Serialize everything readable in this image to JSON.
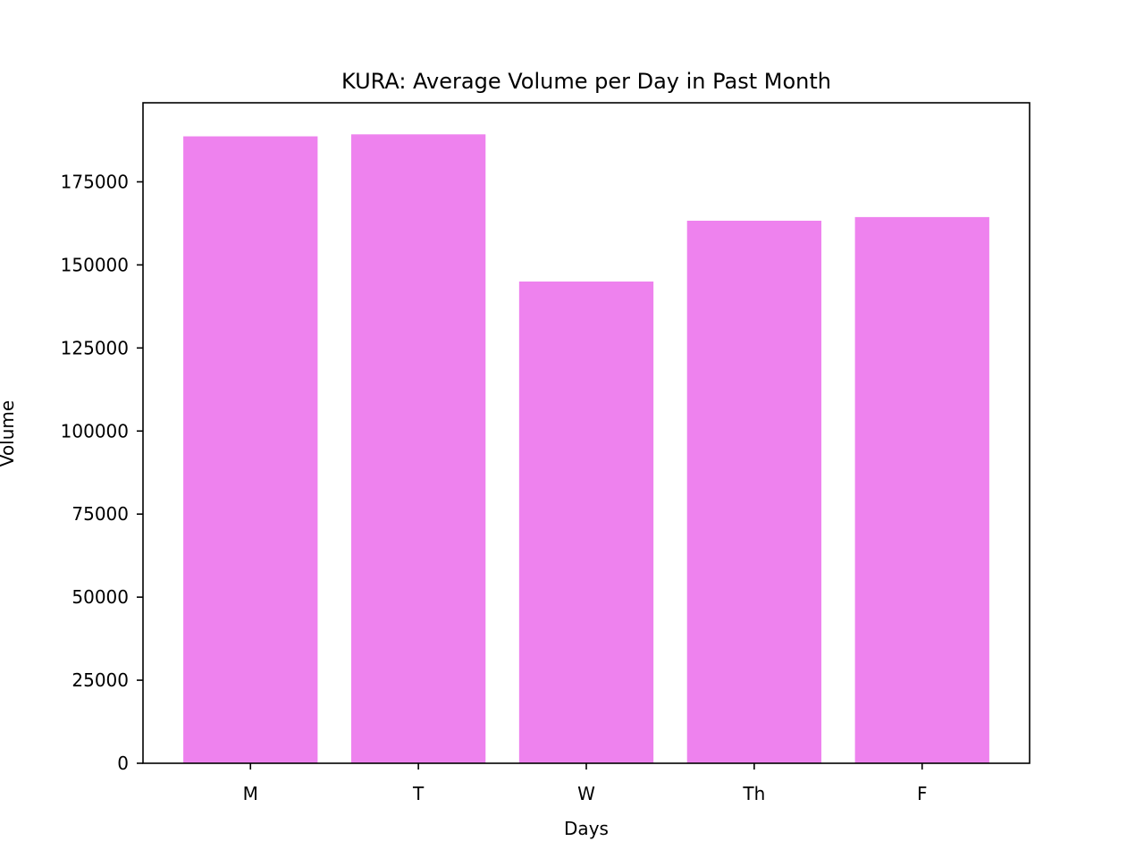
{
  "colors": {
    "bar": "#ee82ee",
    "axis": "#000000",
    "background": "#ffffff"
  },
  "chart_data": {
    "type": "bar",
    "title": "KURA: Average Volume per Day in Past Month",
    "xlabel": "Days",
    "ylabel": "Volume",
    "categories": [
      "M",
      "T",
      "W",
      "Th",
      "F"
    ],
    "values": [
      188700,
      189300,
      145000,
      163300,
      164400
    ],
    "ylim": [
      0,
      198800
    ],
    "yticks": [
      0,
      25000,
      50000,
      75000,
      100000,
      125000,
      150000,
      175000
    ],
    "grid": false,
    "legend": "none"
  }
}
